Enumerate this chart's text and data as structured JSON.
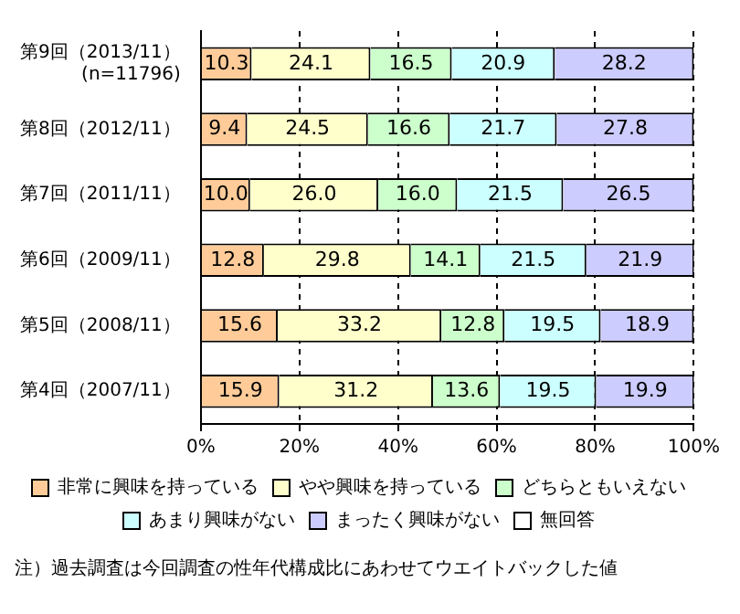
{
  "chart_data": {
    "type": "bar",
    "orientation": "horizontal",
    "stacked": true,
    "grid": "x",
    "legend": "bottom",
    "categories": [
      "第9回（2013/11）\n(n=11796)",
      "第8回（2012/11）",
      "第7回（2011/11）",
      "第6回（2009/11）",
      "第5回（2008/11）",
      "第4回（2007/11）"
    ],
    "xlim": [
      0,
      100
    ],
    "xticks": [
      {
        "value": 0,
        "label": "0%"
      },
      {
        "value": 20,
        "label": "20%"
      },
      {
        "value": 40,
        "label": "40%"
      },
      {
        "value": 60,
        "label": "60%"
      },
      {
        "value": 80,
        "label": "80%"
      },
      {
        "value": 100,
        "label": "100%"
      }
    ],
    "series": [
      {
        "name": "非常に興味を持っている",
        "color": "#ffcc99",
        "values": [
          10.3,
          9.4,
          10.0,
          12.8,
          15.6,
          15.9
        ],
        "value_labels": [
          "10.3",
          "9.4",
          "10.0",
          "12.8",
          "15.6",
          "15.9"
        ]
      },
      {
        "name": "やや興味を持っている",
        "color": "#ffffcc",
        "values": [
          24.1,
          24.5,
          26.0,
          29.8,
          33.2,
          31.2
        ],
        "value_labels": [
          "24.1",
          "24.5",
          "26.0",
          "29.8",
          "33.2",
          "31.2"
        ]
      },
      {
        "name": "どちらともいえない",
        "color": "#ccffcc",
        "values": [
          16.5,
          16.6,
          16.0,
          14.1,
          12.8,
          13.6
        ],
        "value_labels": [
          "16.5",
          "16.6",
          "16.0",
          "14.1",
          "12.8",
          "13.6"
        ]
      },
      {
        "name": "あまり興味がない",
        "color": "#ccffff",
        "values": [
          20.9,
          21.7,
          21.5,
          21.5,
          19.5,
          19.5
        ],
        "value_labels": [
          "20.9",
          "21.7",
          "21.5",
          "21.5",
          "19.5",
          "19.5"
        ]
      },
      {
        "name": "まったく興味がない",
        "color": "#ccccff",
        "values": [
          28.2,
          27.8,
          26.5,
          21.9,
          18.9,
          19.9
        ],
        "value_labels": [
          "28.2",
          "27.8",
          "26.5",
          "21.9",
          "18.9",
          "19.9"
        ]
      },
      {
        "name": "無回答",
        "color": "#ffffff",
        "values": [
          null,
          null,
          null,
          null,
          null,
          null
        ]
      }
    ],
    "annotations": [
      "注）過去調査は今回調査の性年代構成比にあわせてウエイトバックした値"
    ]
  }
}
